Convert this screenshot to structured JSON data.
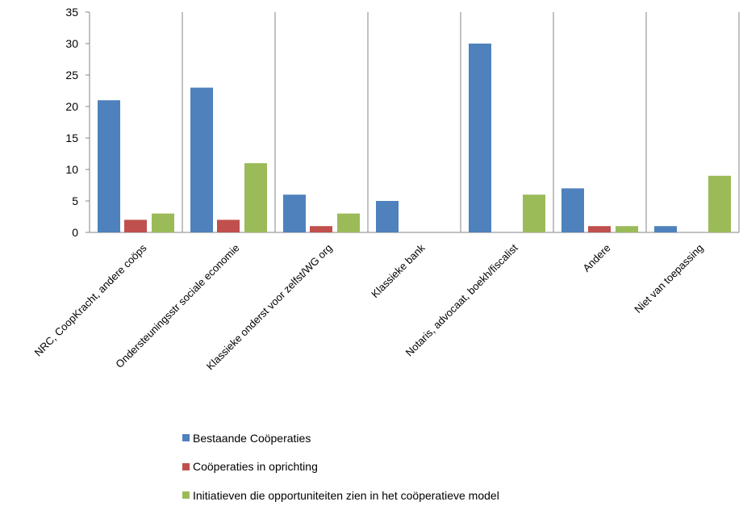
{
  "chart_data": {
    "type": "bar",
    "title": "",
    "xlabel": "",
    "ylabel": "",
    "ylim": [
      0,
      35
    ],
    "yticks": [
      0,
      5,
      10,
      15,
      20,
      25,
      30,
      35
    ],
    "grid": "vertical category dividers",
    "legend_position": "bottom",
    "categories": [
      "NRC, CoopKracht, andere coöps",
      "Ondersteuningsstr sociale economie",
      "Klassieke onderst voor zelfst/WG org",
      "Klassieke bank",
      "Notaris, advocaat, boekh/fiscalist",
      "Andere",
      "Niet van toepassing"
    ],
    "series": [
      {
        "name": "Bestaande Coöperaties",
        "color": "#4F81BD",
        "values": [
          21,
          23,
          6,
          5,
          30,
          7,
          1
        ]
      },
      {
        "name": "Coöperaties in oprichting",
        "color": "#C0504D",
        "values": [
          2,
          2,
          1,
          0,
          0,
          1,
          0
        ]
      },
      {
        "name": "Initiatieven die opportuniteiten zien in het coöperatieve model",
        "color": "#9BBB59",
        "values": [
          3,
          11,
          3,
          0,
          6,
          1,
          9
        ]
      }
    ]
  }
}
